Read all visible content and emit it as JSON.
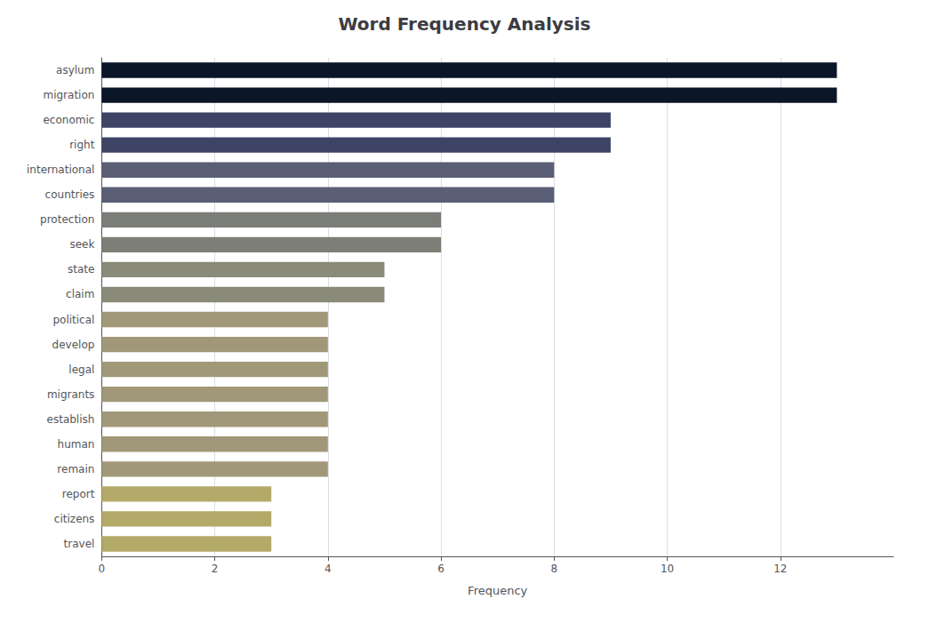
{
  "chart_data": {
    "type": "bar",
    "orientation": "horizontal",
    "title": "Word Frequency Analysis",
    "xlabel": "Frequency",
    "categories": [
      "asylum",
      "migration",
      "economic",
      "right",
      "international",
      "countries",
      "protection",
      "seek",
      "state",
      "claim",
      "political",
      "develop",
      "legal",
      "migrants",
      "establish",
      "human",
      "remain",
      "report",
      "citizens",
      "travel"
    ],
    "values": [
      13,
      13,
      9,
      9,
      8,
      8,
      6,
      6,
      5,
      5,
      4,
      4,
      4,
      4,
      4,
      4,
      4,
      3,
      3,
      3
    ],
    "colors": [
      "#0a1628",
      "#0a1628",
      "#3d4466",
      "#3d4466",
      "#5a5f75",
      "#5a5f75",
      "#7a7d78",
      "#7d7f76",
      "#8a8a78",
      "#8a8a78",
      "#a09878",
      "#a09878",
      "#a09878",
      "#a09878",
      "#a09878",
      "#a09878",
      "#a09878",
      "#b3aa6a",
      "#b3aa6a",
      "#b3aa6a"
    ],
    "xlim": [
      0,
      14
    ],
    "xticks": [
      0,
      2,
      4,
      6,
      8,
      10,
      12
    ],
    "grid": true
  }
}
